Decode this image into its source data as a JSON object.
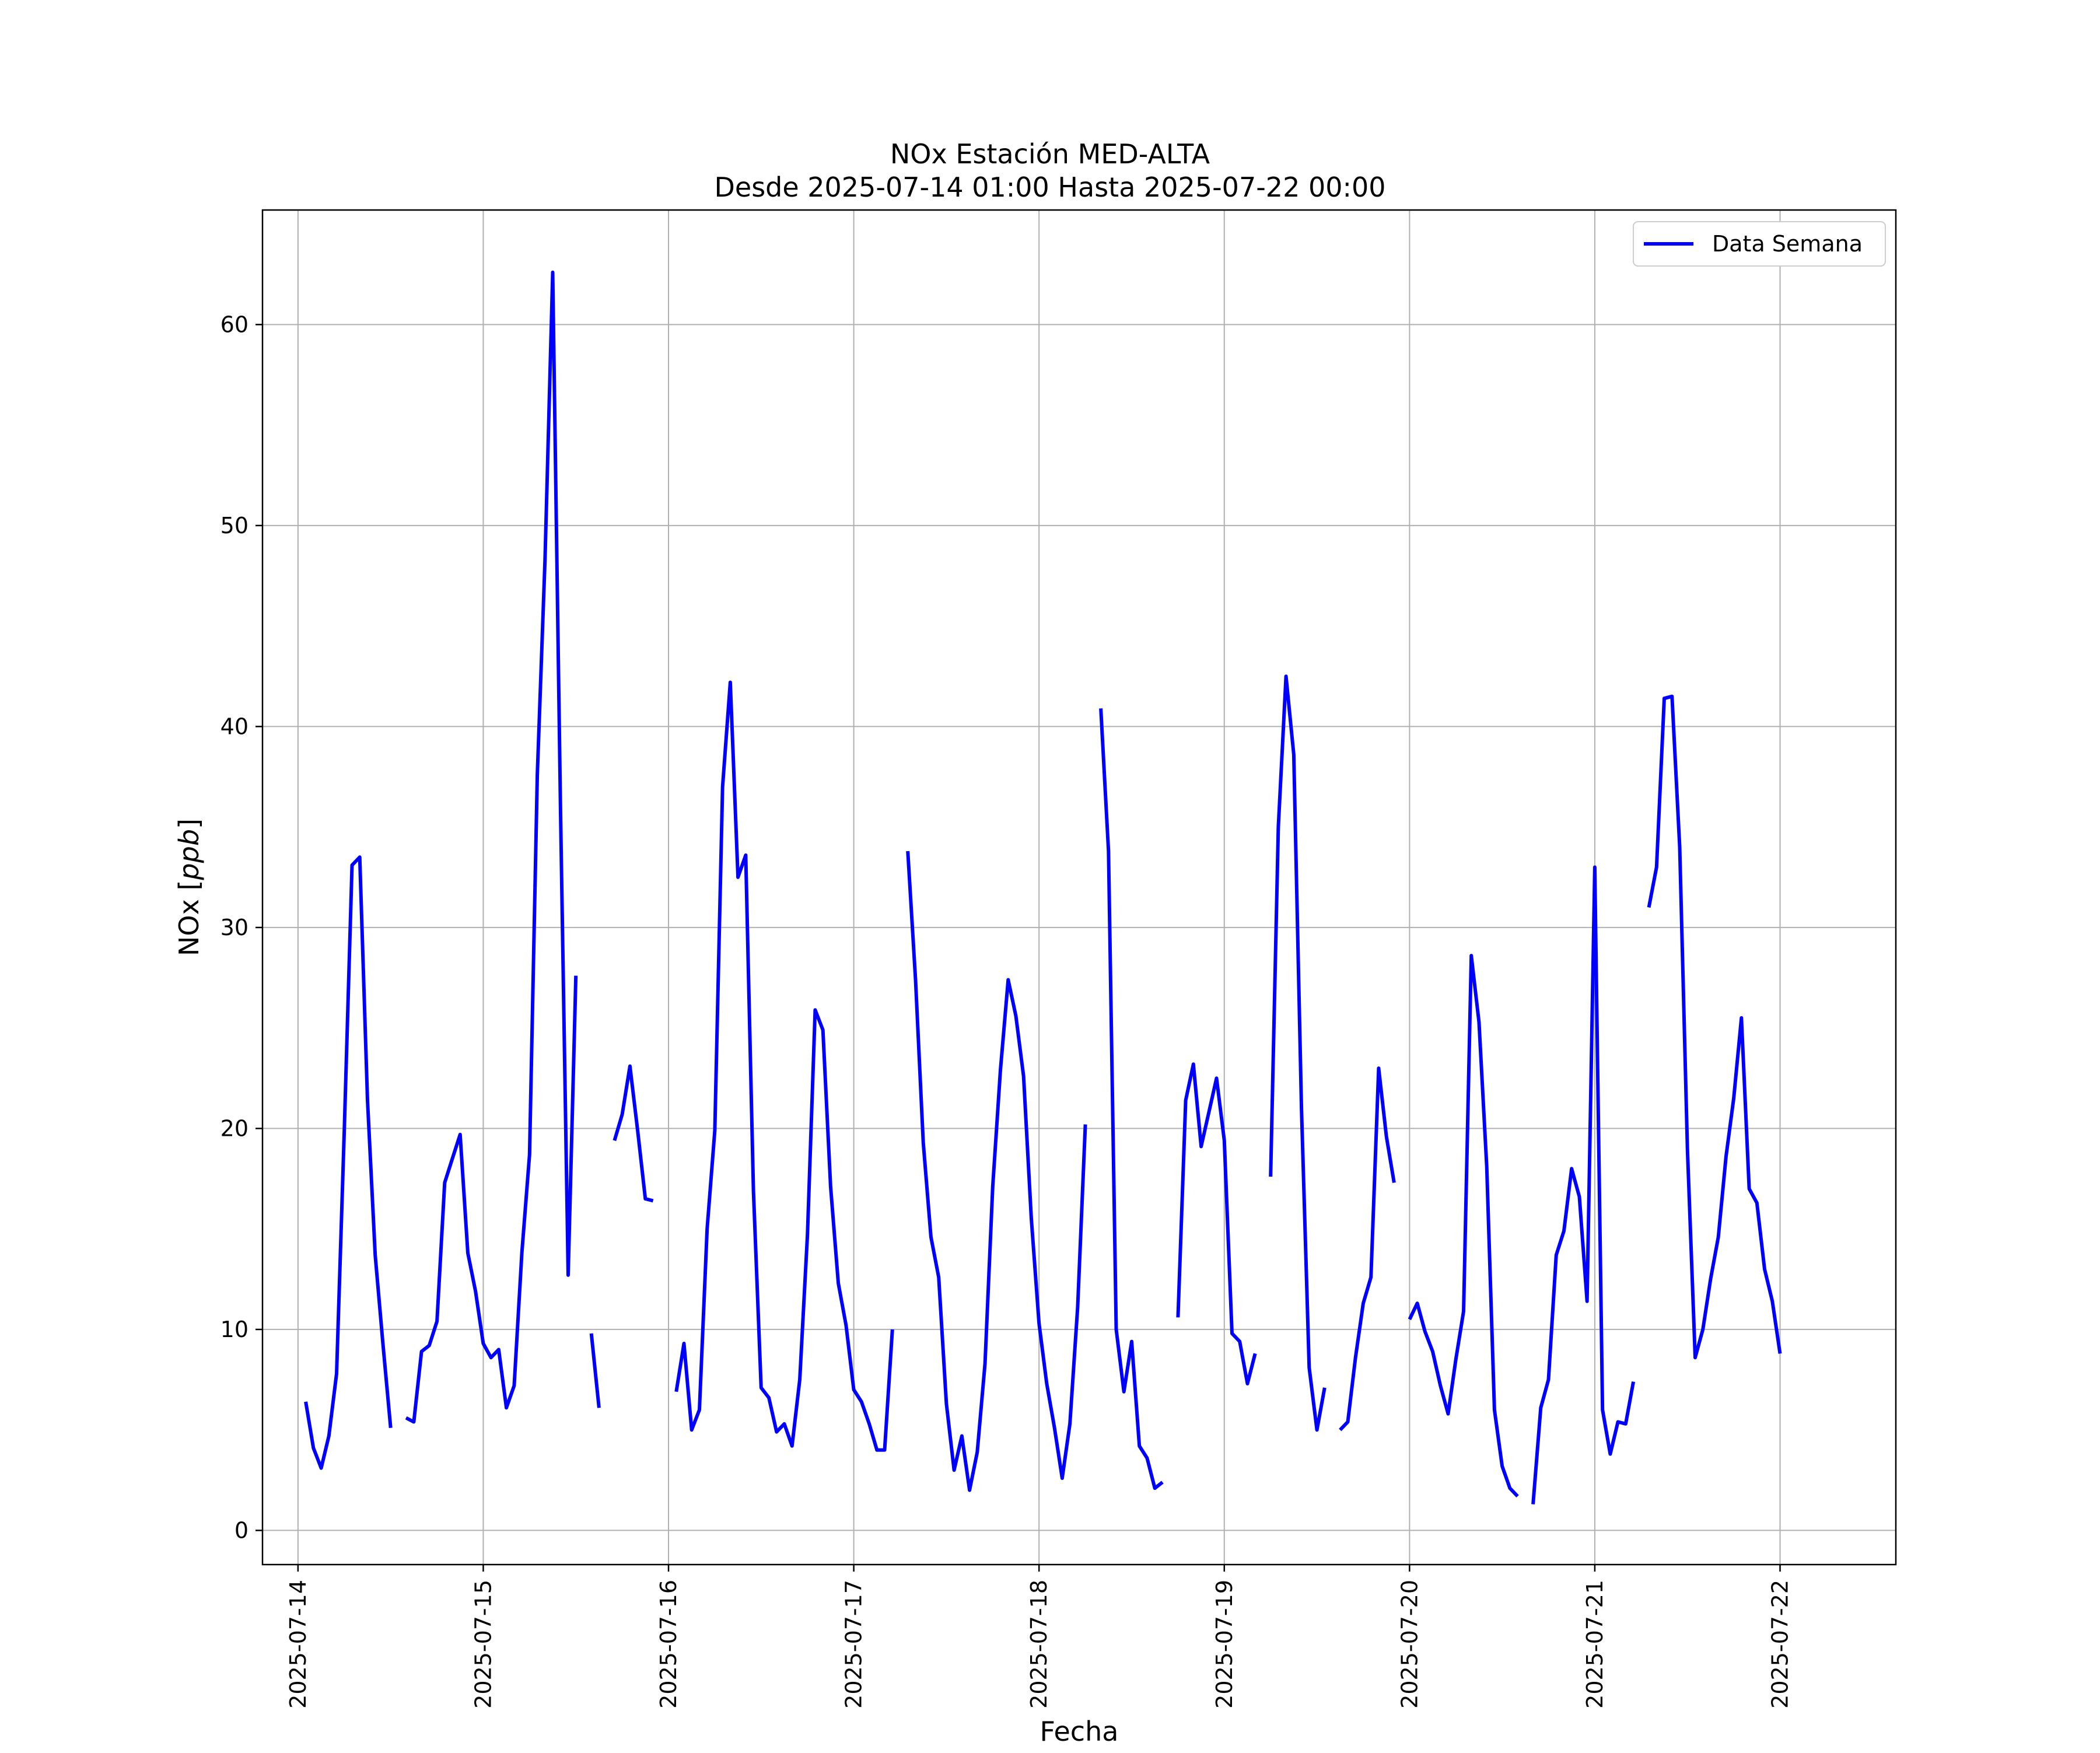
{
  "chart_data": {
    "type": "line",
    "title": "NOx Estación MED-ALTA",
    "subtitle": "Desde 2025-07-14 01:00 Hasta 2025-07-22 00:00",
    "xlabel": "Fecha",
    "ylabel": "NOx [ppb]",
    "ylabel_plain": "NOx [",
    "ylabel_unit": "ppb",
    "ylabel_close": "]",
    "xlim": [
      "2025-07-13T19:24",
      "2025-07-22T15:00"
    ],
    "ylim": [
      -1.7,
      65.7
    ],
    "x_ticks": [
      "2025-07-14",
      "2025-07-15",
      "2025-07-16",
      "2025-07-17",
      "2025-07-18",
      "2025-07-19",
      "2025-07-20",
      "2025-07-21",
      "2025-07-22"
    ],
    "y_ticks": [
      0,
      10,
      20,
      30,
      40,
      50,
      60
    ],
    "y_tick_labels": [
      "0",
      "10",
      "20",
      "30",
      "40",
      "50",
      "60"
    ],
    "grid": true,
    "legend_position": "top-right",
    "series": [
      {
        "name": "Data Semana",
        "color": "#0000ff",
        "points": [
          [
            "2025-07-14T01:00",
            6.4
          ],
          [
            "2025-07-14T02:00",
            4.1
          ],
          [
            "2025-07-14T03:00",
            3.1
          ],
          [
            "2025-07-14T04:00",
            4.7
          ],
          [
            "2025-07-14T05:00",
            7.8
          ],
          [
            "2025-07-14T06:00",
            20.0
          ],
          [
            "2025-07-14T07:00",
            33.1
          ],
          [
            "2025-07-14T08:00",
            33.5
          ],
          [
            "2025-07-14T09:00",
            21.4
          ],
          [
            "2025-07-14T10:00",
            13.7
          ],
          [
            "2025-07-14T11:00",
            9.3
          ],
          [
            "2025-07-14T12:00",
            5.1
          ],
          [
            "2025-07-14T13:00",
            null
          ],
          [
            "2025-07-14T14:00",
            5.6
          ],
          [
            "2025-07-14T15:00",
            5.4
          ],
          [
            "2025-07-14T16:00",
            8.9
          ],
          [
            "2025-07-14T17:00",
            9.2
          ],
          [
            "2025-07-14T18:00",
            10.4
          ],
          [
            "2025-07-14T19:00",
            17.3
          ],
          [
            "2025-07-14T20:00",
            18.5
          ],
          [
            "2025-07-14T21:00",
            19.7
          ],
          [
            "2025-07-14T22:00",
            13.8
          ],
          [
            "2025-07-14T23:00",
            11.9
          ],
          [
            "2025-07-15T00:00",
            9.3
          ],
          [
            "2025-07-15T01:00",
            8.6
          ],
          [
            "2025-07-15T02:00",
            9.0
          ],
          [
            "2025-07-15T03:00",
            6.1
          ],
          [
            "2025-07-15T04:00",
            7.2
          ],
          [
            "2025-07-15T05:00",
            13.8
          ],
          [
            "2025-07-15T06:00",
            18.7
          ],
          [
            "2025-07-15T07:00",
            37.6
          ],
          [
            "2025-07-15T08:00",
            48.3
          ],
          [
            "2025-07-15T09:00",
            62.6
          ],
          [
            "2025-07-15T10:00",
            36.0
          ],
          [
            "2025-07-15T11:00",
            12.7
          ],
          [
            "2025-07-15T12:00",
            27.6
          ],
          [
            "2025-07-15T13:00",
            null
          ],
          [
            "2025-07-15T14:00",
            9.8
          ],
          [
            "2025-07-15T15:00",
            6.1
          ],
          [
            "2025-07-15T16:00",
            null
          ],
          [
            "2025-07-15T17:00",
            19.4
          ],
          [
            "2025-07-15T18:00",
            20.7
          ],
          [
            "2025-07-15T19:00",
            23.1
          ],
          [
            "2025-07-15T20:00",
            19.9
          ],
          [
            "2025-07-15T21:00",
            16.5
          ],
          [
            "2025-07-15T22:00",
            16.4
          ],
          [
            "2025-07-15T23:00",
            null
          ],
          [
            "2025-07-16T00:00",
            null
          ],
          [
            "2025-07-16T01:00",
            6.9
          ],
          [
            "2025-07-16T02:00",
            9.3
          ],
          [
            "2025-07-16T03:00",
            5.0
          ],
          [
            "2025-07-16T04:00",
            6.0
          ],
          [
            "2025-07-16T05:00",
            15.0
          ],
          [
            "2025-07-16T06:00",
            19.9
          ],
          [
            "2025-07-16T07:00",
            37.0
          ],
          [
            "2025-07-16T08:00",
            42.2
          ],
          [
            "2025-07-16T09:00",
            32.5
          ],
          [
            "2025-07-16T10:00",
            33.6
          ],
          [
            "2025-07-16T11:00",
            16.9
          ],
          [
            "2025-07-16T12:00",
            7.1
          ],
          [
            "2025-07-16T13:00",
            6.6
          ],
          [
            "2025-07-16T14:00",
            4.9
          ],
          [
            "2025-07-16T15:00",
            5.3
          ],
          [
            "2025-07-16T16:00",
            4.2
          ],
          [
            "2025-07-16T17:00",
            7.5
          ],
          [
            "2025-07-16T18:00",
            14.7
          ],
          [
            "2025-07-16T19:00",
            25.9
          ],
          [
            "2025-07-16T20:00",
            24.9
          ],
          [
            "2025-07-16T21:00",
            17.1
          ],
          [
            "2025-07-16T22:00",
            12.3
          ],
          [
            "2025-07-16T23:00",
            10.2
          ],
          [
            "2025-07-17T00:00",
            7.0
          ],
          [
            "2025-07-17T01:00",
            6.4
          ],
          [
            "2025-07-17T02:00",
            5.3
          ],
          [
            "2025-07-17T03:00",
            4.0
          ],
          [
            "2025-07-17T04:00",
            4.0
          ],
          [
            "2025-07-17T05:00",
            10.0
          ],
          [
            "2025-07-17T06:00",
            null
          ],
          [
            "2025-07-17T07:00",
            33.8
          ],
          [
            "2025-07-17T08:00",
            27.4
          ],
          [
            "2025-07-17T09:00",
            19.3
          ],
          [
            "2025-07-17T10:00",
            14.6
          ],
          [
            "2025-07-17T11:00",
            12.6
          ],
          [
            "2025-07-17T12:00",
            6.3
          ],
          [
            "2025-07-17T13:00",
            3.0
          ],
          [
            "2025-07-17T14:00",
            4.7
          ],
          [
            "2025-07-17T15:00",
            2.0
          ],
          [
            "2025-07-17T16:00",
            3.9
          ],
          [
            "2025-07-17T17:00",
            8.3
          ],
          [
            "2025-07-17T18:00",
            17.1
          ],
          [
            "2025-07-17T19:00",
            22.9
          ],
          [
            "2025-07-17T20:00",
            27.4
          ],
          [
            "2025-07-17T21:00",
            25.6
          ],
          [
            "2025-07-17T22:00",
            22.6
          ],
          [
            "2025-07-17T23:00",
            15.5
          ],
          [
            "2025-07-18T00:00",
            10.3
          ],
          [
            "2025-07-18T01:00",
            7.3
          ],
          [
            "2025-07-18T02:00",
            5.1
          ],
          [
            "2025-07-18T03:00",
            2.6
          ],
          [
            "2025-07-18T04:00",
            5.3
          ],
          [
            "2025-07-18T05:00",
            11.1
          ],
          [
            "2025-07-18T06:00",
            20.2
          ],
          [
            "2025-07-18T07:00",
            null
          ],
          [
            "2025-07-18T08:00",
            40.9
          ],
          [
            "2025-07-18T09:00",
            33.8
          ],
          [
            "2025-07-18T10:00",
            10.0
          ],
          [
            "2025-07-18T11:00",
            6.9
          ],
          [
            "2025-07-18T12:00",
            9.4
          ],
          [
            "2025-07-18T13:00",
            4.2
          ],
          [
            "2025-07-18T14:00",
            3.6
          ],
          [
            "2025-07-18T15:00",
            2.1
          ],
          [
            "2025-07-18T16:00",
            2.4
          ],
          [
            "2025-07-18T17:00",
            null
          ],
          [
            "2025-07-18T18:00",
            10.6
          ],
          [
            "2025-07-18T19:00",
            21.4
          ],
          [
            "2025-07-18T20:00",
            23.2
          ],
          [
            "2025-07-18T21:00",
            19.1
          ],
          [
            "2025-07-18T22:00",
            20.8
          ],
          [
            "2025-07-18T23:00",
            22.5
          ],
          [
            "2025-07-19T00:00",
            19.4
          ],
          [
            "2025-07-19T01:00",
            9.8
          ],
          [
            "2025-07-19T02:00",
            9.4
          ],
          [
            "2025-07-19T03:00",
            7.3
          ],
          [
            "2025-07-19T04:00",
            8.8
          ],
          [
            "2025-07-19T05:00",
            null
          ],
          [
            "2025-07-19T06:00",
            17.6
          ],
          [
            "2025-07-19T07:00",
            35.0
          ],
          [
            "2025-07-19T08:00",
            42.5
          ],
          [
            "2025-07-19T09:00",
            38.6
          ],
          [
            "2025-07-19T10:00",
            21.0
          ],
          [
            "2025-07-19T11:00",
            8.1
          ],
          [
            "2025-07-19T12:00",
            5.0
          ],
          [
            "2025-07-19T13:00",
            7.1
          ],
          [
            "2025-07-19T14:00",
            null
          ],
          [
            "2025-07-19T15:00",
            5.0
          ],
          [
            "2025-07-19T16:00",
            5.4
          ],
          [
            "2025-07-19T17:00",
            8.6
          ],
          [
            "2025-07-19T18:00",
            11.3
          ],
          [
            "2025-07-19T19:00",
            12.6
          ],
          [
            "2025-07-19T20:00",
            23.0
          ],
          [
            "2025-07-19T21:00",
            19.6
          ],
          [
            "2025-07-19T22:00",
            17.3
          ],
          [
            "2025-07-19T23:00",
            null
          ],
          [
            "2025-07-20T00:00",
            10.5
          ],
          [
            "2025-07-20T01:00",
            11.3
          ],
          [
            "2025-07-20T02:00",
            9.9
          ],
          [
            "2025-07-20T03:00",
            8.9
          ],
          [
            "2025-07-20T04:00",
            7.2
          ],
          [
            "2025-07-20T05:00",
            5.8
          ],
          [
            "2025-07-20T06:00",
            8.5
          ],
          [
            "2025-07-20T07:00",
            10.9
          ],
          [
            "2025-07-20T08:00",
            28.6
          ],
          [
            "2025-07-20T09:00",
            25.3
          ],
          [
            "2025-07-20T10:00",
            18.1
          ],
          [
            "2025-07-20T11:00",
            6.0
          ],
          [
            "2025-07-20T12:00",
            3.2
          ],
          [
            "2025-07-20T13:00",
            2.1
          ],
          [
            "2025-07-20T14:00",
            1.7
          ],
          [
            "2025-07-20T15:00",
            null
          ],
          [
            "2025-07-20T16:00",
            1.3
          ],
          [
            "2025-07-20T17:00",
            6.1
          ],
          [
            "2025-07-20T18:00",
            7.5
          ],
          [
            "2025-07-20T19:00",
            13.7
          ],
          [
            "2025-07-20T20:00",
            14.9
          ],
          [
            "2025-07-20T21:00",
            18.0
          ],
          [
            "2025-07-20T22:00",
            16.6
          ],
          [
            "2025-07-20T23:00",
            11.4
          ],
          [
            "2025-07-21T00:00",
            33.0
          ],
          [
            "2025-07-21T01:00",
            6.0
          ],
          [
            "2025-07-21T02:00",
            3.8
          ],
          [
            "2025-07-21T03:00",
            5.4
          ],
          [
            "2025-07-21T04:00",
            5.3
          ],
          [
            "2025-07-21T05:00",
            7.4
          ],
          [
            "2025-07-21T06:00",
            null
          ],
          [
            "2025-07-21T07:00",
            31.0
          ],
          [
            "2025-07-21T08:00",
            33.0
          ],
          [
            "2025-07-21T09:00",
            41.4
          ],
          [
            "2025-07-21T10:00",
            41.5
          ],
          [
            "2025-07-21T11:00",
            34.0
          ],
          [
            "2025-07-21T12:00",
            19.0
          ],
          [
            "2025-07-21T13:00",
            8.6
          ],
          [
            "2025-07-21T14:00",
            10.0
          ],
          [
            "2025-07-21T15:00",
            12.5
          ],
          [
            "2025-07-21T16:00",
            14.6
          ],
          [
            "2025-07-21T17:00",
            18.6
          ],
          [
            "2025-07-21T18:00",
            21.5
          ],
          [
            "2025-07-21T19:00",
            25.5
          ],
          [
            "2025-07-21T20:00",
            17.0
          ],
          [
            "2025-07-21T21:00",
            16.3
          ],
          [
            "2025-07-21T22:00",
            13.0
          ],
          [
            "2025-07-21T23:00",
            11.4
          ],
          [
            "2025-07-22T00:00",
            8.8
          ]
        ]
      }
    ]
  }
}
